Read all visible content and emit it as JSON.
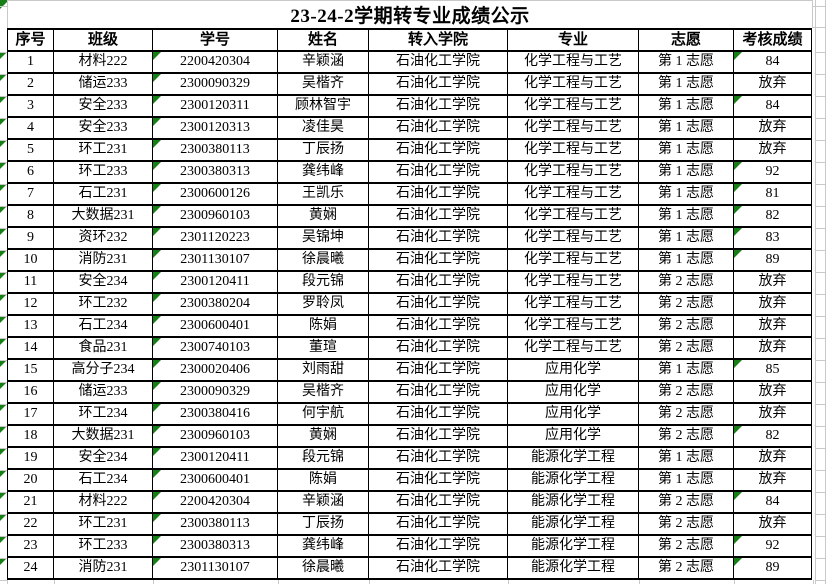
{
  "sheet": {
    "title": "23-24-2学期转专业成绩公示"
  },
  "colors": {
    "error_marker_green": "#168016",
    "cell_border": "#000000",
    "gridline_gray": "#c9c9c9",
    "background": "#ffffff",
    "text": "#000000"
  },
  "icons": {
    "error_marker": "green-corner-triangle"
  },
  "table": {
    "headers": [
      "序号",
      "班级",
      "学号",
      "姓名",
      "转入学院",
      "专业",
      "志愿",
      "考核成绩"
    ],
    "rows": [
      {
        "no": "1",
        "class_name": "材料222",
        "student_id": "2200420304",
        "name": "辛颖涵",
        "college": "石油化工学院",
        "major": "化学工程与工艺",
        "choice": "第 1 志愿",
        "score": "84",
        "score_marker": true,
        "id_marker": true,
        "row_marker": true
      },
      {
        "no": "2",
        "class_name": "储运233",
        "student_id": "2300090329",
        "name": "吴楷齐",
        "college": "石油化工学院",
        "major": "化学工程与工艺",
        "choice": "第 1 志愿",
        "score": "放弃",
        "score_marker": false,
        "id_marker": true,
        "row_marker": true
      },
      {
        "no": "3",
        "class_name": "安全233",
        "student_id": "2300120311",
        "name": "顾林智宇",
        "college": "石油化工学院",
        "major": "化学工程与工艺",
        "choice": "第 1 志愿",
        "score": "84",
        "score_marker": true,
        "id_marker": true,
        "row_marker": true
      },
      {
        "no": "4",
        "class_name": "安全233",
        "student_id": "2300120313",
        "name": "凌佳昊",
        "college": "石油化工学院",
        "major": "化学工程与工艺",
        "choice": "第 1 志愿",
        "score": "放弃",
        "score_marker": false,
        "id_marker": true,
        "row_marker": true
      },
      {
        "no": "5",
        "class_name": "环工231",
        "student_id": "2300380113",
        "name": "丁辰扬",
        "college": "石油化工学院",
        "major": "化学工程与工艺",
        "choice": "第 1 志愿",
        "score": "放弃",
        "score_marker": false,
        "id_marker": true,
        "row_marker": true
      },
      {
        "no": "6",
        "class_name": "环工233",
        "student_id": "2300380313",
        "name": "龚纬峰",
        "college": "石油化工学院",
        "major": "化学工程与工艺",
        "choice": "第 1 志愿",
        "score": "92",
        "score_marker": true,
        "id_marker": true,
        "row_marker": true
      },
      {
        "no": "7",
        "class_name": "石工231",
        "student_id": "2300600126",
        "name": "王凯乐",
        "college": "石油化工学院",
        "major": "化学工程与工艺",
        "choice": "第 1 志愿",
        "score": "81",
        "score_marker": true,
        "id_marker": true,
        "row_marker": true
      },
      {
        "no": "8",
        "class_name": "大数据231",
        "student_id": "2300960103",
        "name": "黄娴",
        "college": "石油化工学院",
        "major": "化学工程与工艺",
        "choice": "第 1 志愿",
        "score": "82",
        "score_marker": true,
        "id_marker": true,
        "row_marker": true
      },
      {
        "no": "9",
        "class_name": "资环232",
        "student_id": "2301120223",
        "name": "吴锦坤",
        "college": "石油化工学院",
        "major": "化学工程与工艺",
        "choice": "第 1 志愿",
        "score": "83",
        "score_marker": true,
        "id_marker": true,
        "row_marker": true
      },
      {
        "no": "10",
        "class_name": "消防231",
        "student_id": "2301130107",
        "name": "徐晨曦",
        "college": "石油化工学院",
        "major": "化学工程与工艺",
        "choice": "第 1 志愿",
        "score": "89",
        "score_marker": true,
        "id_marker": true,
        "row_marker": true
      },
      {
        "no": "11",
        "class_name": "安全234",
        "student_id": "2300120411",
        "name": "段元锦",
        "college": "石油化工学院",
        "major": "化学工程与工艺",
        "choice": "第 2 志愿",
        "score": "放弃",
        "score_marker": false,
        "id_marker": true,
        "row_marker": true
      },
      {
        "no": "12",
        "class_name": "环工232",
        "student_id": "2300380204",
        "name": "罗聆凤",
        "college": "石油化工学院",
        "major": "化学工程与工艺",
        "choice": "第 2 志愿",
        "score": "放弃",
        "score_marker": false,
        "id_marker": true,
        "row_marker": true
      },
      {
        "no": "13",
        "class_name": "石工234",
        "student_id": "2300600401",
        "name": "陈娟",
        "college": "石油化工学院",
        "major": "化学工程与工艺",
        "choice": "第 2 志愿",
        "score": "放弃",
        "score_marker": false,
        "id_marker": true,
        "row_marker": true
      },
      {
        "no": "14",
        "class_name": "食品231",
        "student_id": "2300740103",
        "name": "董瑄",
        "college": "石油化工学院",
        "major": "化学工程与工艺",
        "choice": "第 2 志愿",
        "score": "放弃",
        "score_marker": false,
        "id_marker": true,
        "row_marker": true
      },
      {
        "no": "15",
        "class_name": "高分子234",
        "student_id": "2300020406",
        "name": "刘雨甜",
        "college": "石油化工学院",
        "major": "应用化学",
        "choice": "第 1 志愿",
        "score": "85",
        "score_marker": true,
        "id_marker": true,
        "row_marker": true
      },
      {
        "no": "16",
        "class_name": "储运233",
        "student_id": "2300090329",
        "name": "吴楷齐",
        "college": "石油化工学院",
        "major": "应用化学",
        "choice": "第 2 志愿",
        "score": "放弃",
        "score_marker": false,
        "id_marker": true,
        "row_marker": true
      },
      {
        "no": "17",
        "class_name": "环工234",
        "student_id": "2300380416",
        "name": "何宇航",
        "college": "石油化工学院",
        "major": "应用化学",
        "choice": "第 2 志愿",
        "score": "放弃",
        "score_marker": false,
        "id_marker": true,
        "row_marker": true
      },
      {
        "no": "18",
        "class_name": "大数据231",
        "student_id": "2300960103",
        "name": "黄娴",
        "college": "石油化工学院",
        "major": "应用化学",
        "choice": "第 2 志愿",
        "score": "82",
        "score_marker": true,
        "id_marker": true,
        "row_marker": true
      },
      {
        "no": "19",
        "class_name": "安全234",
        "student_id": "2300120411",
        "name": "段元锦",
        "college": "石油化工学院",
        "major": "能源化学工程",
        "choice": "第 1 志愿",
        "score": "放弃",
        "score_marker": false,
        "id_marker": true,
        "row_marker": true
      },
      {
        "no": "20",
        "class_name": "石工234",
        "student_id": "2300600401",
        "name": "陈娟",
        "college": "石油化工学院",
        "major": "能源化学工程",
        "choice": "第 1 志愿",
        "score": "放弃",
        "score_marker": false,
        "id_marker": true,
        "row_marker": true
      },
      {
        "no": "21",
        "class_name": "材料222",
        "student_id": "2200420304",
        "name": "辛颖涵",
        "college": "石油化工学院",
        "major": "能源化学工程",
        "choice": "第 2 志愿",
        "score": "84",
        "score_marker": true,
        "id_marker": true,
        "row_marker": true
      },
      {
        "no": "22",
        "class_name": "环工231",
        "student_id": "2300380113",
        "name": "丁辰扬",
        "college": "石油化工学院",
        "major": "能源化学工程",
        "choice": "第 2 志愿",
        "score": "放弃",
        "score_marker": false,
        "id_marker": true,
        "row_marker": true
      },
      {
        "no": "23",
        "class_name": "环工233",
        "student_id": "2300380313",
        "name": "龚纬峰",
        "college": "石油化工学院",
        "major": "能源化学工程",
        "choice": "第 2 志愿",
        "score": "92",
        "score_marker": true,
        "id_marker": true,
        "row_marker": true
      },
      {
        "no": "24",
        "class_name": "消防231",
        "student_id": "2301130107",
        "name": "徐晨曦",
        "college": "石油化工学院",
        "major": "能源化学工程",
        "choice": "第 2 志愿",
        "score": "89",
        "score_marker": true,
        "id_marker": true,
        "row_marker": true
      }
    ]
  }
}
